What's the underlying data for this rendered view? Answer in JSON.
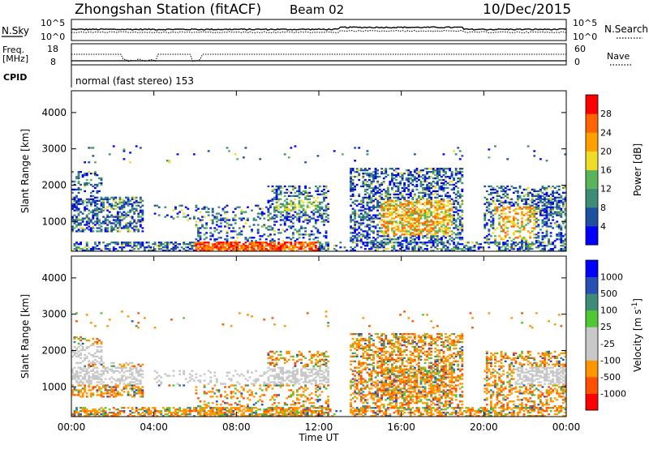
{
  "header": {
    "title": "Zhongshan Station (fitACF)",
    "beam": "Beam 02",
    "date": "10/Dec/2015"
  },
  "strip": {
    "nsky_label": "N.Sky",
    "nsearch_label": "N.Search",
    "noise_ticks_left": [
      "10^5",
      "10^0"
    ],
    "noise_ticks_right": [
      "10^5",
      "10^0"
    ],
    "freq_label": "Freq.",
    "freq_unit": "[MHz]",
    "freq_ticks": [
      "18",
      "8"
    ],
    "nave_label": "Nave",
    "nave_ticks": [
      "60",
      "0"
    ],
    "cpid_label": "CPID",
    "cpid_value": "normal (fast stereo) 153"
  },
  "colors": {
    "power_scale": [
      "#0000ff",
      "#1e50a0",
      "#3c8c78",
      "#5ab45a",
      "#f0dc28",
      "#ffa000",
      "#ff6400",
      "#ff0000"
    ],
    "velocity_scale": [
      "#ff0000",
      "#ff5000",
      "#ff9600",
      "#c8c8c8",
      "#c8c8c8",
      "#50c832",
      "#3c8c78",
      "#2850b4",
      "#0000ff"
    ]
  },
  "chart_data": [
    {
      "type": "heatmap",
      "name": "power",
      "ylabel": "Slant Range [km]",
      "xlabel": "",
      "x_ticks": [
        "00:00",
        "04:00",
        "08:00",
        "12:00",
        "16:00",
        "20:00",
        "00:00"
      ],
      "y_ticks": [
        1000,
        2000,
        3000,
        4000
      ],
      "ylim": [
        180,
        4600
      ],
      "xlim_hours": [
        0,
        24
      ],
      "colorbar": {
        "label": "Power [dB]",
        "ticks": [
          "4",
          "8",
          "12",
          "16",
          "20",
          "24",
          "28"
        ],
        "range": [
          0,
          30
        ]
      }
    },
    {
      "type": "heatmap",
      "name": "velocity",
      "ylabel": "Slant Range [km]",
      "xlabel": "Time UT",
      "x_ticks": [
        "00:00",
        "04:00",
        "08:00",
        "12:00",
        "16:00",
        "20:00",
        "00:00"
      ],
      "y_ticks": [
        1000,
        2000,
        3000,
        4000
      ],
      "ylim": [
        180,
        4600
      ],
      "xlim_hours": [
        0,
        24
      ],
      "colorbar": {
        "label": "Velocity [m s",
        "label_sup": "-1",
        "label_end": "]",
        "ticks": [
          "1000",
          "500",
          "100",
          "25",
          "-25",
          "-100",
          "-500",
          "-1000"
        ]
      }
    }
  ]
}
